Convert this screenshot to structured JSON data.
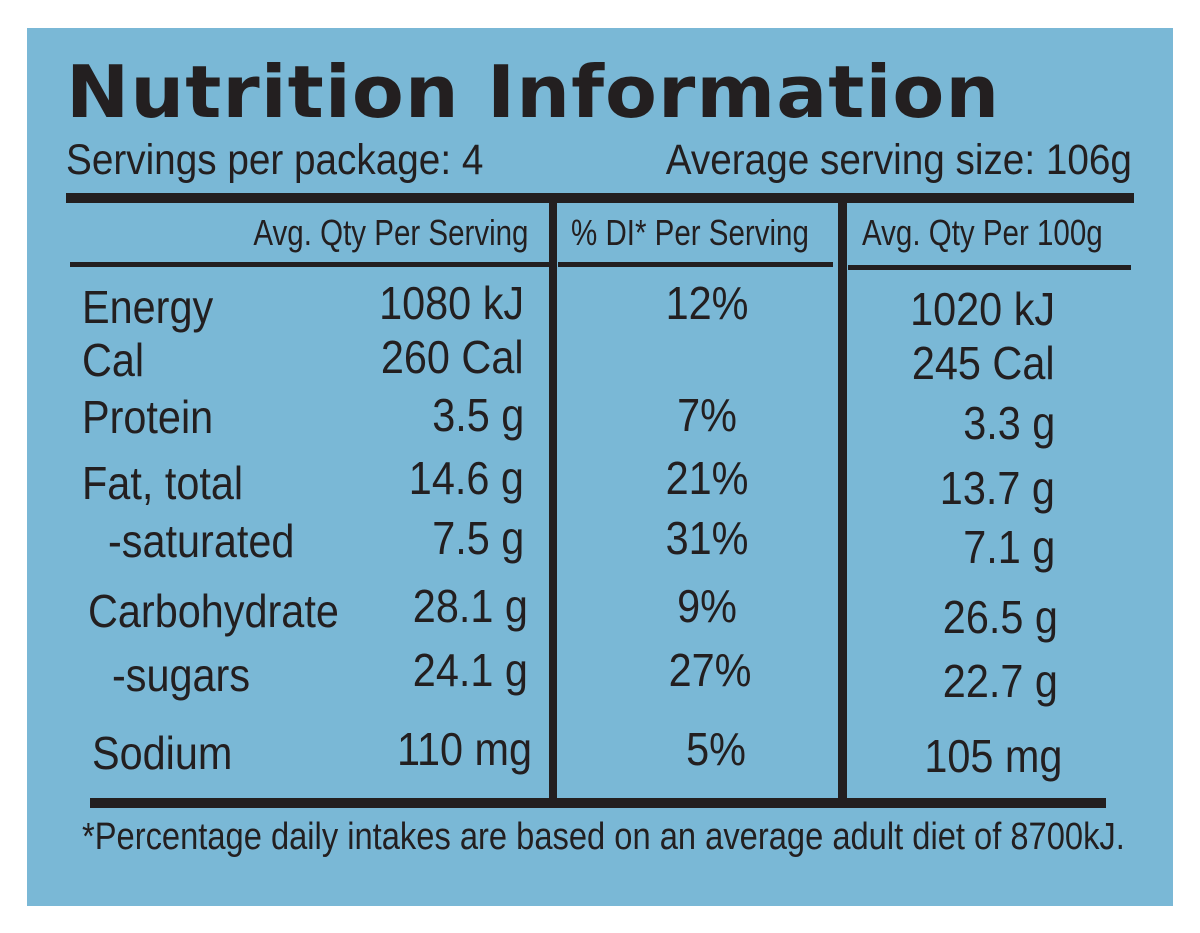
{
  "title": "Nutrition Information",
  "servings_per_package": "Servings per package: 4",
  "serving_size": "Average serving size: 106g",
  "columns": {
    "per_serving": "Avg. Qty Per Serving",
    "di_per_serving": "% DI* Per Serving",
    "per_100g": "Avg. Qty Per 100g"
  },
  "rows": [
    {
      "label": "Energy",
      "per_serving": "1080 kJ",
      "di": "12%",
      "per_100g": "1020 kJ"
    },
    {
      "label": "Cal",
      "per_serving": "260 Cal",
      "di": "",
      "per_100g": "245 Cal"
    },
    {
      "label": "Protein",
      "per_serving": "3.5 g",
      "di": "7%",
      "per_100g": "3.3 g"
    },
    {
      "label": "Fat, total",
      "per_serving": "14.6 g",
      "di": "21%",
      "per_100g": "13.7 g"
    },
    {
      "label": "-saturated",
      "per_serving": "7.5 g",
      "di": "31%",
      "per_100g": "7.1 g"
    },
    {
      "label": "Carbohydrate",
      "per_serving": "28.1 g",
      "di": "9%",
      "per_100g": "26.5 g"
    },
    {
      "label": "-sugars",
      "per_serving": "24.1 g",
      "di": "27%",
      "per_100g": "22.7 g"
    },
    {
      "label": "Sodium",
      "per_serving": "110 mg",
      "di": "5%",
      "per_100g": "105 mg"
    }
  ],
  "footnote": "*Percentage daily intakes are based on an average adult diet of 8700kJ.",
  "colors": {
    "background": "#7ab8d6",
    "ink": "#231f20"
  }
}
